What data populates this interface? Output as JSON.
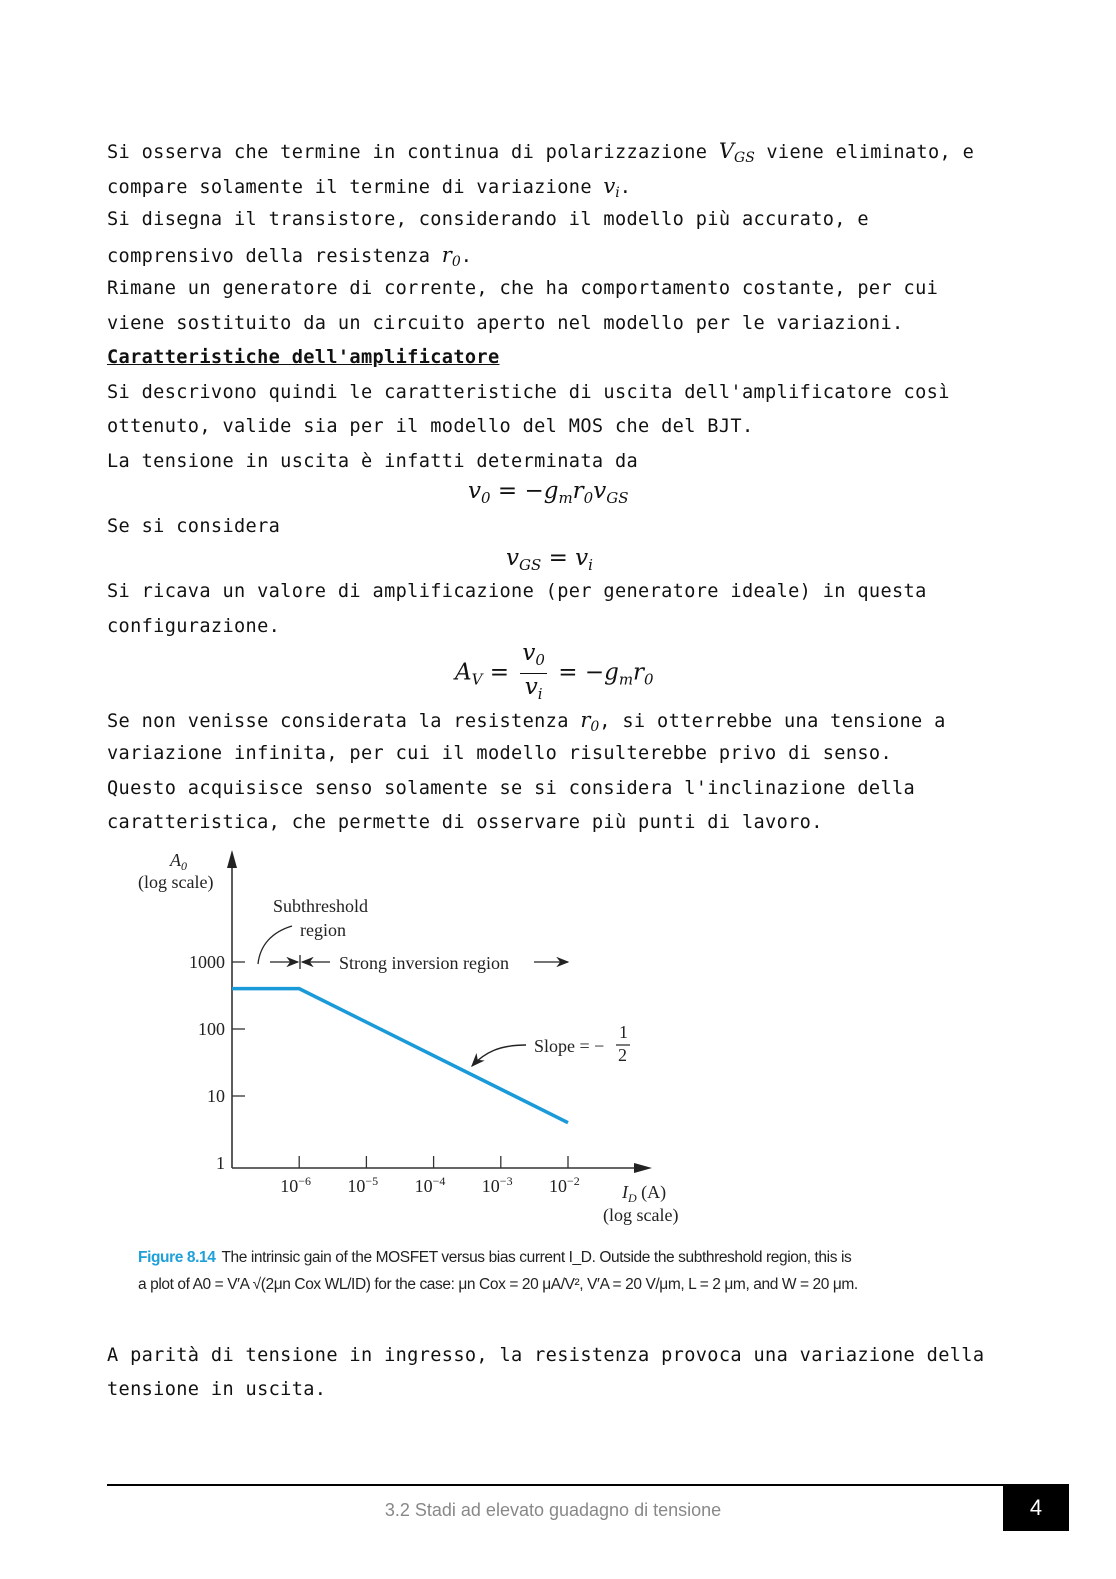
{
  "body_lines": [
    [
      {
        "t": "Si osserva che termine in continua di polarizzazione "
      },
      {
        "m": "V",
        "sub": "GS"
      },
      {
        "t": " viene eliminato, e"
      }
    ],
    [
      {
        "t": "compare solamente il termine di variazione "
      },
      {
        "m": "v",
        "sub": "i"
      },
      {
        "t": "."
      }
    ],
    [
      {
        "t": "Si disegna il transistore, considerando il modello più accurato, e"
      }
    ],
    [
      {
        "t": "comprensivo della resistenza "
      },
      {
        "m": "r",
        "sub": "0"
      },
      {
        "t": "."
      }
    ],
    [
      {
        "t": "Rimane un generatore di corrente, che ha comportamento costante, per cui"
      }
    ],
    [
      {
        "t": "viene sostituito da un circuito aperto nel modello per le variazioni."
      }
    ],
    [
      {
        "h": "Caratteristiche dell'amplificatore"
      }
    ],
    [
      {
        "t": "Si descrivono quindi le caratteristiche di uscita dell'amplificatore così"
      }
    ],
    [
      {
        "t": "ottenuto, valide sia per il modello del MOS che del BJT."
      }
    ],
    [
      {
        "t": "La tensione in uscita è infatti determinata da"
      }
    ],
    [
      {
        "t": "Se si considera"
      }
    ],
    [
      {
        "t": "Si ricava un valore di amplificazione (per generatore ideale) in questa"
      }
    ],
    [
      {
        "t": "configurazione."
      }
    ],
    [
      {
        "t": "Se non venisse considerata la resistenza "
      },
      {
        "m": "r",
        "sub": "0"
      },
      {
        "t": ", si otterrebbe una tensione a"
      }
    ],
    [
      {
        "t": "variazione infinita, per cui il modello risulterebbe privo di senso."
      }
    ],
    [
      {
        "t": "Questo acquisisce senso solamente se si considera l'inclinazione della"
      }
    ],
    [
      {
        "t": "caratteristica, che permette di osservare più punti di lavoro."
      }
    ],
    [
      {
        "t": "A parità di tensione in ingresso, la resistenza provoca una variazione della"
      }
    ],
    [
      {
        "t": "tensione in uscita."
      }
    ]
  ],
  "equations": {
    "eq1": {
      "lhs": "v",
      "lhs_sub": "0",
      "rhs": " = −g",
      "g_sub": "m",
      "r": "r",
      "r_sub": "0",
      "v": "v",
      "v_sub": "GS"
    },
    "eq2": {
      "lhs": "v",
      "lhs_sub": "GS",
      "rhs": " = v",
      "rhs_sub": "i"
    },
    "eq3": {
      "lhs": "A",
      "lhs_sub": "V",
      "eq": " = ",
      "num": "v",
      "num_sub": "0",
      "den": "v",
      "den_sub": "i",
      "rhs": " = −g",
      "g_sub": "m",
      "r": "r",
      "r_sub": "0"
    }
  },
  "chart_data": {
    "type": "line",
    "ylabel": "A0 (log scale)",
    "ylabel_main": "A",
    "ylabel_sub": "0",
    "ylabel_scale": "(log scale)",
    "xlabel_main": "I",
    "xlabel_sub": "D",
    "xlabel_unit": " (A)",
    "xlabel_scale": "(log scale)",
    "x_scale": "log",
    "y_scale": "log",
    "xlim": [
      1e-07,
      0.1
    ],
    "ylim": [
      1,
      5000
    ],
    "x_ticks": [
      {
        "value": 1e-06,
        "base": "10",
        "exp": "−6"
      },
      {
        "value": 1e-05,
        "base": "10",
        "exp": "−5"
      },
      {
        "value": 0.0001,
        "base": "10",
        "exp": "−4"
      },
      {
        "value": 0.001,
        "base": "10",
        "exp": "−3"
      },
      {
        "value": 0.01,
        "base": "10",
        "exp": "−2"
      }
    ],
    "y_ticks": [
      {
        "value": 1,
        "label": "1"
      },
      {
        "value": 10,
        "label": "10"
      },
      {
        "value": 100,
        "label": "100"
      },
      {
        "value": 1000,
        "label": "1000"
      }
    ],
    "series": [
      {
        "color": "#1a9ad9",
        "x": [
          1e-07,
          1e-06,
          0.01
        ],
        "y": [
          400,
          400,
          4
        ]
      }
    ],
    "annotations": {
      "subthreshold_1": "Subthreshold",
      "subthreshold_2": "region",
      "strong_inversion": "Strong inversion region",
      "slope_label": "Slope = −",
      "slope_num": "1",
      "slope_den": "2"
    },
    "grid": false
  },
  "caption": {
    "figure_label": "Figure 8.14",
    "line1": "The intrinsic gain of the MOSFET versus bias current I_D. Outside the subthreshold region, this is",
    "line2": "a plot of A0 = V′A √(2μn Cox WL/ID) for the case: μn Cox = 20 μA/V², V′A = 20 V/μm, L = 2 μm, and W = 20 μm."
  },
  "footer": {
    "section": "3.2 Stadi ad elevato guadagno di tensione",
    "page": "4"
  }
}
